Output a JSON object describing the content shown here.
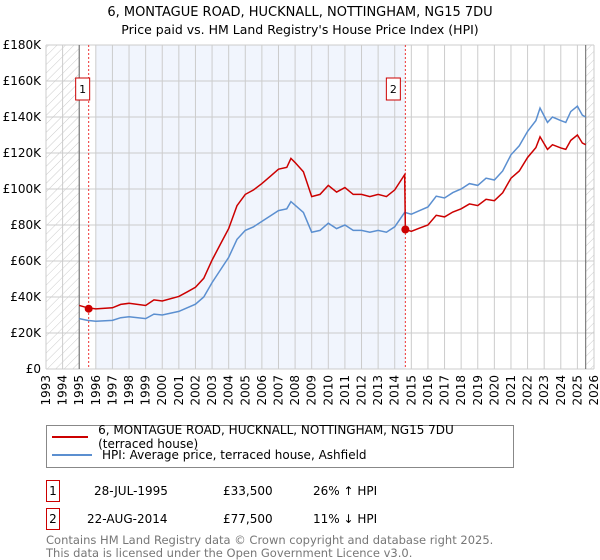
{
  "chart_data": {
    "type": "line",
    "title": "6, MONTAGUE ROAD, HUCKNALL, NOTTINGHAM, NG15 7DU",
    "subtitle": "Price paid vs. HM Land Registry's House Price Index (HPI)",
    "xlim": [
      1993,
      2026
    ],
    "ylim": [
      0,
      180000
    ],
    "y_ticks": [
      0,
      20000,
      40000,
      60000,
      80000,
      100000,
      120000,
      140000,
      160000,
      180000
    ],
    "y_tick_labels": [
      "£0",
      "£20K",
      "£40K",
      "£60K",
      "£80K",
      "£100K",
      "£120K",
      "£140K",
      "£160K",
      "£180K"
    ],
    "x_ticks": [
      "1993",
      "1994",
      "1995",
      "1996",
      "1997",
      "1998",
      "1999",
      "2000",
      "2001",
      "2002",
      "2003",
      "2004",
      "2005",
      "2006",
      "2007",
      "2008",
      "2009",
      "2010",
      "2011",
      "2012",
      "2013",
      "2014",
      "2015",
      "2016",
      "2017",
      "2018",
      "2019",
      "2020",
      "2021",
      "2022",
      "2023",
      "2024",
      "2025",
      "2026"
    ],
    "grid": true,
    "series": [
      {
        "name": "6, MONTAGUE ROAD, HUCKNALL, NOTTINGHAM, NG15 7DU (terraced house)",
        "color": "#cc0000",
        "x": [
          1995,
          1995.5,
          1996,
          1997,
          1997.5,
          1998,
          1999,
          1999.5,
          2000,
          2001,
          2001.5,
          2002,
          2002.5,
          2003,
          2003.5,
          2004,
          2004.5,
          2005,
          2005.5,
          2006,
          2006.5,
          2007,
          2007.5,
          2007.75,
          2008,
          2008.5,
          2009,
          2009.5,
          2010,
          2010.5,
          2011,
          2011.5,
          2012,
          2012.5,
          2013,
          2013.5,
          2014,
          2014.6,
          2014.64,
          2015,
          2015.5,
          2016,
          2016.5,
          2017,
          2017.5,
          2018,
          2018.5,
          2019,
          2019.5,
          2020,
          2020.5,
          2021,
          2021.5,
          2022,
          2022.5,
          2022.75,
          2023.2,
          2023.5,
          2024,
          2024.3,
          2024.6,
          2025,
          2025.3,
          2025.5
        ],
        "y": [
          35300,
          34000,
          33400,
          34000,
          35900,
          36500,
          35300,
          38400,
          37800,
          40300,
          42800,
          45400,
          50400,
          60500,
          69300,
          78000,
          90700,
          97000,
          99500,
          103000,
          107000,
          111000,
          112000,
          117000,
          114700,
          109600,
          95800,
          97000,
          102000,
          98300,
          100800,
          97000,
          97000,
          95800,
          97000,
          95800,
          99500,
          108000,
          77500,
          76500,
          78300,
          80000,
          85400,
          84500,
          87200,
          89000,
          91700,
          90800,
          94300,
          93500,
          97900,
          106000,
          110000,
          117500,
          123000,
          129000,
          122000,
          124600,
          122800,
          122000,
          127000,
          130000,
          125500,
          124600
        ]
      },
      {
        "name": "HPI: Average price, terraced house, Ashfield",
        "color": "#5b8fd0",
        "x": [
          1995,
          1995.5,
          1996,
          1997,
          1997.5,
          1998,
          1999,
          1999.5,
          2000,
          2001,
          2001.5,
          2002,
          2002.5,
          2003,
          2003.5,
          2004,
          2004.5,
          2005,
          2005.5,
          2006,
          2006.5,
          2007,
          2007.5,
          2007.75,
          2008,
          2008.5,
          2009,
          2009.5,
          2010,
          2010.5,
          2011,
          2011.5,
          2012,
          2012.5,
          2013,
          2013.5,
          2014,
          2014.6,
          2015,
          2015.5,
          2016,
          2016.5,
          2017,
          2017.5,
          2018,
          2018.5,
          2019,
          2019.5,
          2020,
          2020.5,
          2021,
          2021.5,
          2022,
          2022.5,
          2022.75,
          2023.2,
          2023.5,
          2024,
          2024.3,
          2024.6,
          2025,
          2025.3,
          2025.5
        ],
        "y": [
          28000,
          27000,
          26500,
          27000,
          28500,
          29000,
          28000,
          30500,
          30000,
          32000,
          34000,
          36000,
          40000,
          48000,
          55000,
          62000,
          72000,
          77000,
          79000,
          82000,
          85000,
          88000,
          89000,
          93000,
          91000,
          87000,
          76000,
          77000,
          81000,
          78000,
          80000,
          77000,
          77000,
          76000,
          77000,
          76000,
          79000,
          87000,
          86000,
          88000,
          90000,
          96000,
          95000,
          98000,
          100000,
          103000,
          102000,
          106000,
          105000,
          110000,
          119000,
          124000,
          132000,
          138000,
          145000,
          137000,
          140000,
          138000,
          137000,
          143000,
          146000,
          141000,
          140000
        ]
      }
    ],
    "sales": [
      {
        "label": "1",
        "x": 1995.57,
        "y": 33500,
        "date": "28-JUL-1995",
        "price": "£33,500",
        "hpi": "26% ↑ HPI"
      },
      {
        "label": "2",
        "x": 2014.64,
        "y": 77500,
        "date": "22-AUG-2014",
        "price": "£77,500",
        "hpi": "11% ↓ HPI"
      }
    ],
    "shaded_range": [
      1996,
      2014.64
    ],
    "hatched_before": 1995,
    "hatched_after": 2025.5
  },
  "footer": {
    "line1": "Contains HM Land Registry data © Crown copyright and database right 2025.",
    "line2": "This data is licensed under the Open Government Licence v3.0."
  }
}
